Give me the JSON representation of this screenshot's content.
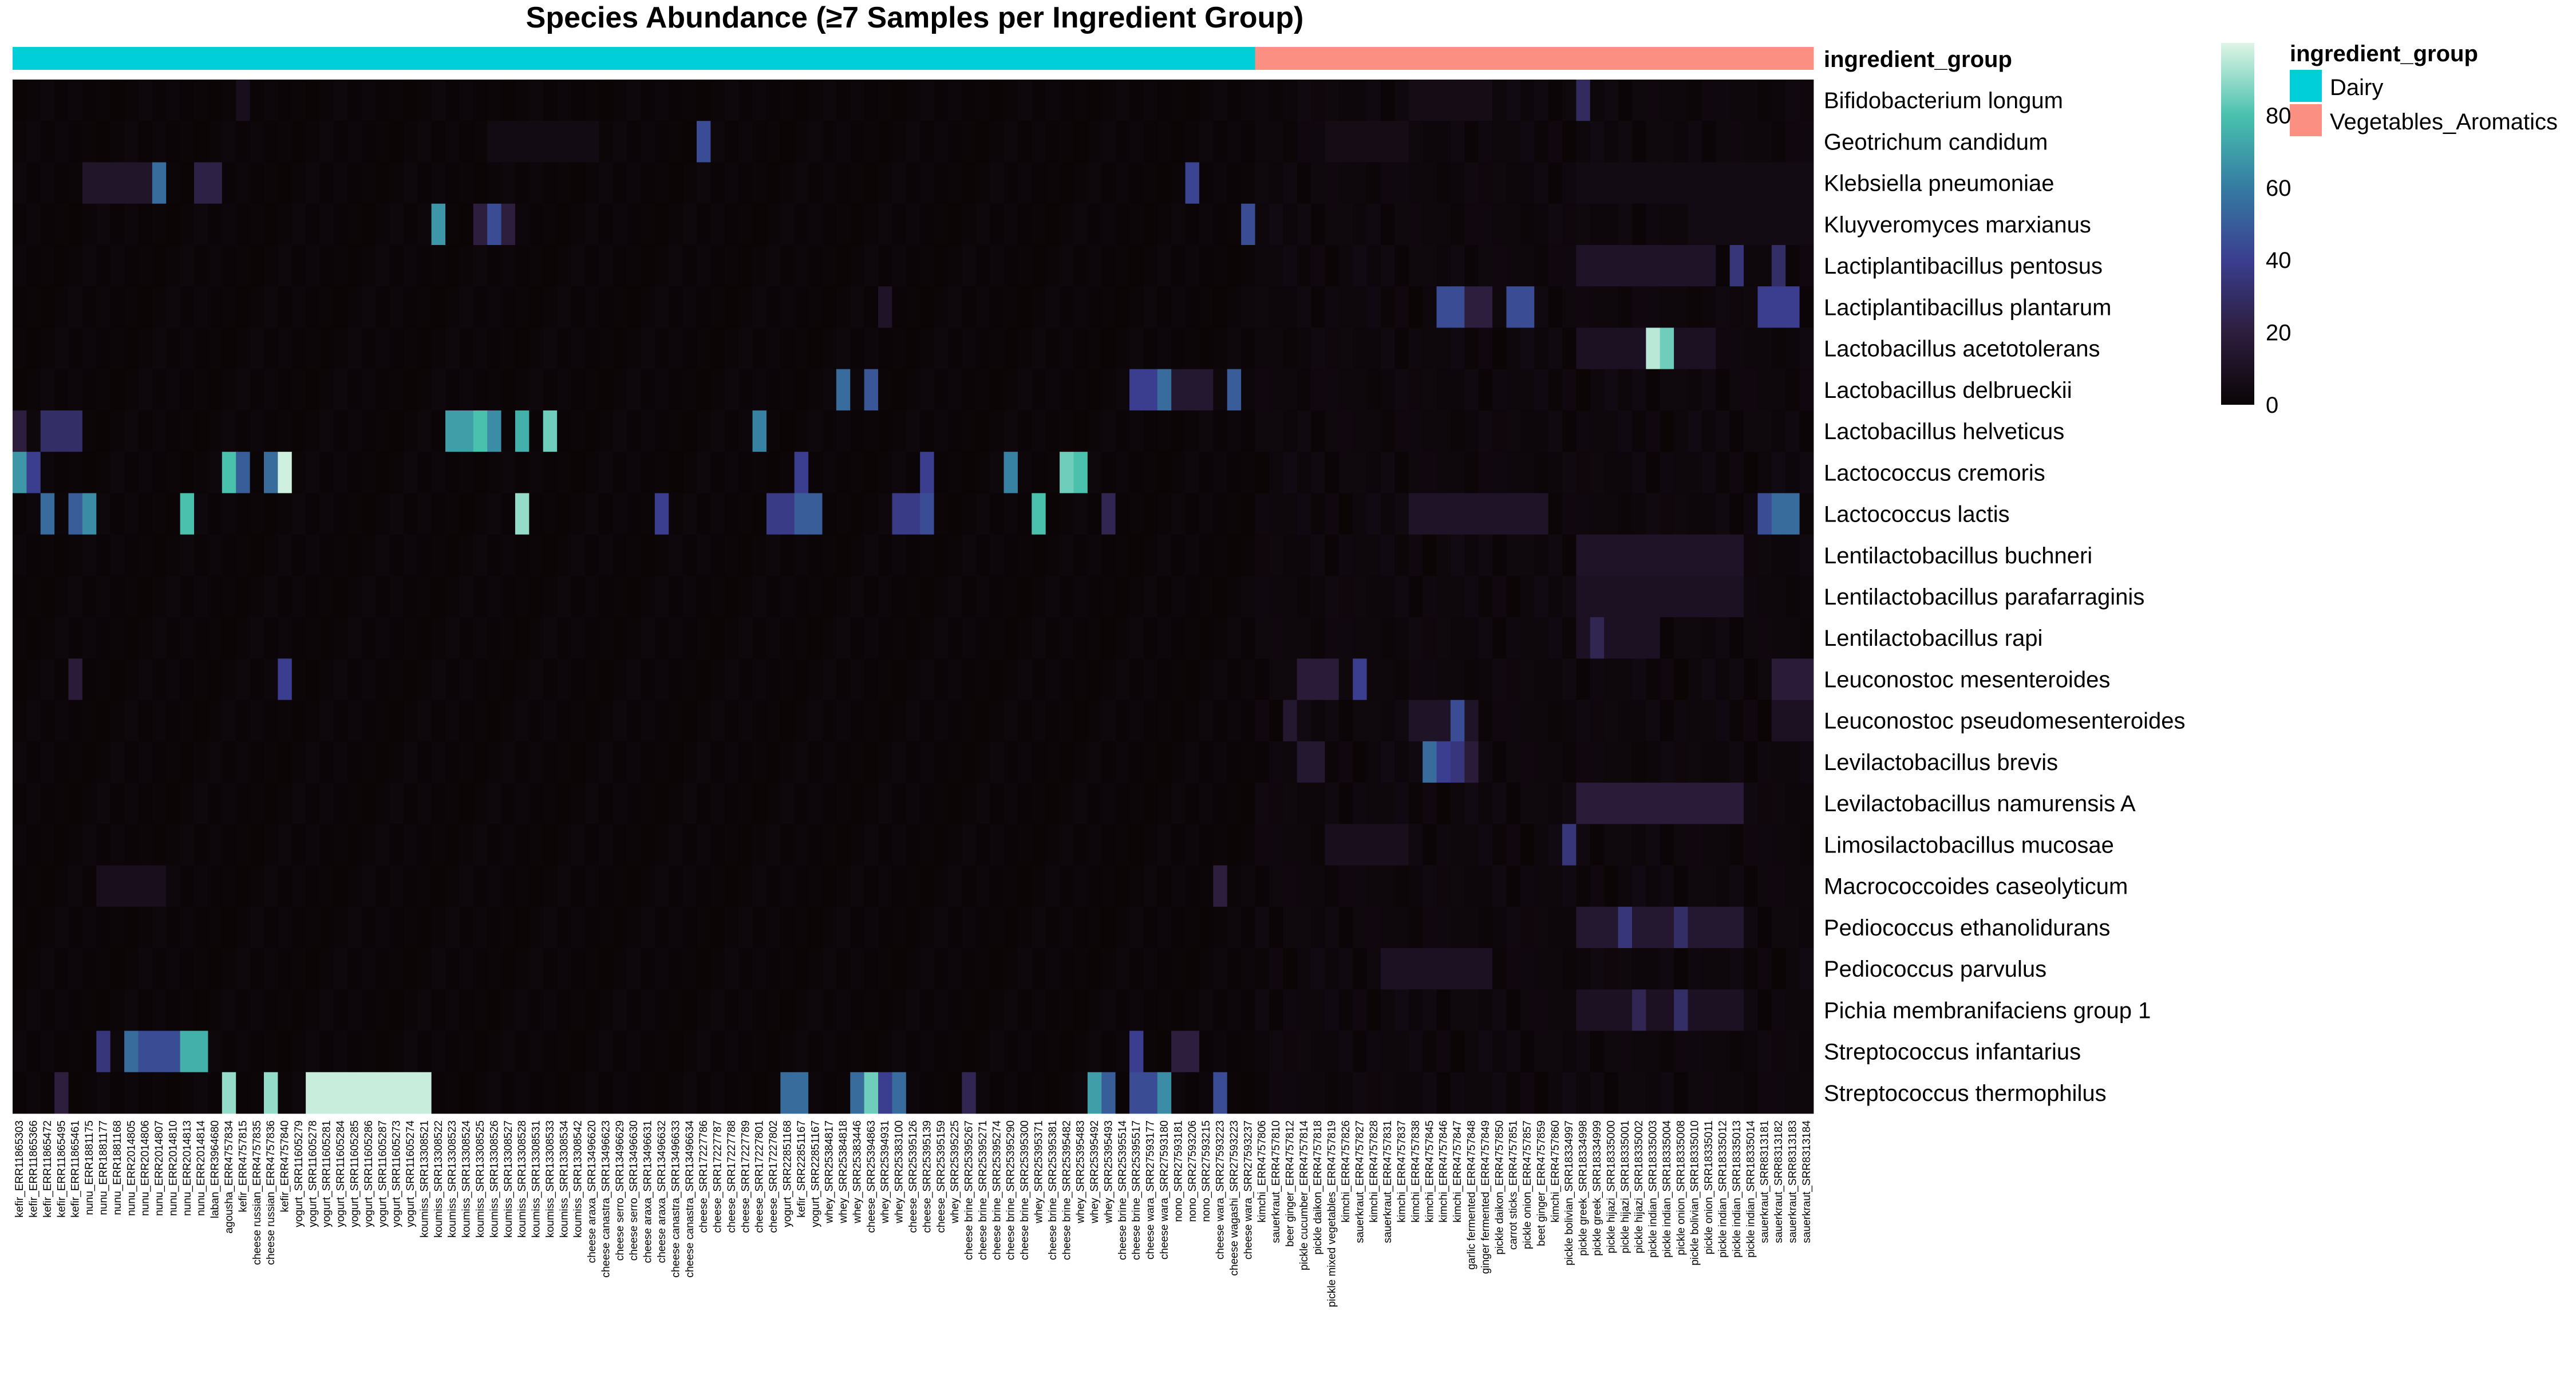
{
  "chart_data": {
    "type": "heatmap",
    "title": "Species Abundance (≥7 Samples per Ingredient Group)",
    "annotation_title": "ingredient_group",
    "color_scale": {
      "min": 0,
      "max": 100,
      "ticks": [
        0,
        20,
        40,
        60,
        80
      ],
      "stops": [
        "#0a0405",
        "#2d1e3e",
        "#3b3e8f",
        "#357ba2",
        "#49c1ad",
        "#def5e5"
      ]
    },
    "groups": [
      {
        "name": "Dairy",
        "color": "#00CED8"
      },
      {
        "name": "Vegetables_Aromatics",
        "color": "#FA8F82"
      }
    ],
    "rows": [
      "Bifidobacterium longum",
      "Geotrichum candidum",
      "Klebsiella pneumoniae",
      "Kluyveromyces marxianus",
      "Lactiplantibacillus pentosus",
      "Lactiplantibacillus plantarum",
      "Lactobacillus acetotolerans",
      "Lactobacillus delbrueckii",
      "Lactobacillus helveticus",
      "Lactococcus cremoris",
      "Lactococcus lactis",
      "Lentilactobacillus buchneri",
      "Lentilactobacillus parafarraginis",
      "Lentilactobacillus rapi",
      "Leuconostoc mesenteroides",
      "Leuconostoc pseudomesenteroides",
      "Levilactobacillus brevis",
      "Levilactobacillus namurensis A",
      "Limosilactobacillus mucosae",
      "Macrococcoides caseolyticum",
      "Pediococcus ethanolidurans",
      "Pediococcus parvulus",
      "Pichia membranifaciens group 1",
      "Streptococcus infantarius",
      "Streptococcus thermophilus"
    ],
    "columns": [
      {
        "label": "kefir_ERR11865303",
        "group": 0
      },
      {
        "label": "kefir_ERR11865366",
        "group": 0
      },
      {
        "label": "kefir_ERR11865472",
        "group": 0
      },
      {
        "label": "kefir_ERR11865495",
        "group": 0
      },
      {
        "label": "kefir_ERR11865461",
        "group": 0
      },
      {
        "label": "nunu_ERR1881175",
        "group": 0
      },
      {
        "label": "nunu_ERR1881177",
        "group": 0
      },
      {
        "label": "nunu_ERR1881168",
        "group": 0
      },
      {
        "label": "nunu_ERR2014805",
        "group": 0
      },
      {
        "label": "nunu_ERR2014806",
        "group": 0
      },
      {
        "label": "nunu_ERR2014807",
        "group": 0
      },
      {
        "label": "nunu_ERR2014810",
        "group": 0
      },
      {
        "label": "nunu_ERR2014813",
        "group": 0
      },
      {
        "label": "nunu_ERR2014814",
        "group": 0
      },
      {
        "label": "laban_ERR3964680",
        "group": 0
      },
      {
        "label": "agousha_ERR4757834",
        "group": 0
      },
      {
        "label": "kefir_ERR4757815",
        "group": 0
      },
      {
        "label": "cheese russian_ERR4757835",
        "group": 0
      },
      {
        "label": "cheese russian_ERR4757836",
        "group": 0
      },
      {
        "label": "kefir_ERR4757840",
        "group": 0
      },
      {
        "label": "yogurt_SRR11605279",
        "group": 0
      },
      {
        "label": "yogurt_SRR11605278",
        "group": 0
      },
      {
        "label": "yogurt_SRR11605281",
        "group": 0
      },
      {
        "label": "yogurt_SRR11605284",
        "group": 0
      },
      {
        "label": "yogurt_SRR11605285",
        "group": 0
      },
      {
        "label": "yogurt_SRR11605286",
        "group": 0
      },
      {
        "label": "yogurt_SRR11605287",
        "group": 0
      },
      {
        "label": "yogurt_SRR11605273",
        "group": 0
      },
      {
        "label": "yogurt_SRR11605274",
        "group": 0
      },
      {
        "label": "koumiss_SRR13308521",
        "group": 0
      },
      {
        "label": "koumiss_SRR13308522",
        "group": 0
      },
      {
        "label": "koumiss_SRR13308523",
        "group": 0
      },
      {
        "label": "koumiss_SRR13308524",
        "group": 0
      },
      {
        "label": "koumiss_SRR13308525",
        "group": 0
      },
      {
        "label": "koumiss_SRR13308526",
        "group": 0
      },
      {
        "label": "koumiss_SRR13308527",
        "group": 0
      },
      {
        "label": "koumiss_SRR13308528",
        "group": 0
      },
      {
        "label": "koumiss_SRR13308531",
        "group": 0
      },
      {
        "label": "koumiss_SRR13308533",
        "group": 0
      },
      {
        "label": "koumiss_SRR13308534",
        "group": 0
      },
      {
        "label": "koumiss_SRR13308542",
        "group": 0
      },
      {
        "label": "cheese araxa_SRR13496620",
        "group": 0
      },
      {
        "label": "cheese canastra_SRR13496623",
        "group": 0
      },
      {
        "label": "cheese serro_SRR13496629",
        "group": 0
      },
      {
        "label": "cheese serro_SRR13496630",
        "group": 0
      },
      {
        "label": "cheese araxa_SRR13496631",
        "group": 0
      },
      {
        "label": "cheese araxa_SRR13496632",
        "group": 0
      },
      {
        "label": "cheese canastra_SRR13496633",
        "group": 0
      },
      {
        "label": "cheese canastra_SRR13496634",
        "group": 0
      },
      {
        "label": "cheese_SRR17227786",
        "group": 0
      },
      {
        "label": "cheese_SRR17227787",
        "group": 0
      },
      {
        "label": "cheese_SRR17227788",
        "group": 0
      },
      {
        "label": "cheese_SRR17227789",
        "group": 0
      },
      {
        "label": "cheese_SRR17227801",
        "group": 0
      },
      {
        "label": "cheese_SRR17227802",
        "group": 0
      },
      {
        "label": "yogurt_SRR22851168",
        "group": 0
      },
      {
        "label": "kefir_SRR22851167",
        "group": 0
      },
      {
        "label": "yogurt_SRR22851167",
        "group": 0
      },
      {
        "label": "whey_SRR25384817",
        "group": 0
      },
      {
        "label": "whey_SRR25384818",
        "group": 0
      },
      {
        "label": "whey_SRR25383446",
        "group": 0
      },
      {
        "label": "cheese_SRR25394863",
        "group": 0
      },
      {
        "label": "whey_SRR25394931",
        "group": 0
      },
      {
        "label": "whey_SRR25383100",
        "group": 0
      },
      {
        "label": "cheese_SRR25395126",
        "group": 0
      },
      {
        "label": "cheese_SRR25395139",
        "group": 0
      },
      {
        "label": "cheese_SRR25395159",
        "group": 0
      },
      {
        "label": "whey_SRR25395225",
        "group": 0
      },
      {
        "label": "cheese brine_SRR25395267",
        "group": 0
      },
      {
        "label": "cheese brine_SRR25395271",
        "group": 0
      },
      {
        "label": "cheese brine_SRR25395274",
        "group": 0
      },
      {
        "label": "cheese brine_SRR25395290",
        "group": 0
      },
      {
        "label": "cheese brine_SRR25395300",
        "group": 0
      },
      {
        "label": "whey_SRR25395371",
        "group": 0
      },
      {
        "label": "cheese brine_SRR25395381",
        "group": 0
      },
      {
        "label": "cheese brine_SRR25395482",
        "group": 0
      },
      {
        "label": "whey_SRR25395483",
        "group": 0
      },
      {
        "label": "whey_SRR25395492",
        "group": 0
      },
      {
        "label": "whey_SRR25395493",
        "group": 0
      },
      {
        "label": "cheese brine_SRR25395514",
        "group": 0
      },
      {
        "label": "cheese brine_SRR25395517",
        "group": 0
      },
      {
        "label": "cheese wara_SRR27593177",
        "group": 0
      },
      {
        "label": "cheese wara_SRR27593180",
        "group": 0
      },
      {
        "label": "nono_SRR27593181",
        "group": 0
      },
      {
        "label": "nono_SRR27593206",
        "group": 0
      },
      {
        "label": "nono_SRR27593215",
        "group": 0
      },
      {
        "label": "cheese wara_SRR27593223",
        "group": 0
      },
      {
        "label": "cheese wagashi_SRR27593223",
        "group": 0
      },
      {
        "label": "cheese wara_SRR27593237",
        "group": 0
      },
      {
        "label": "kimchi_ERR4757806",
        "group": 1
      },
      {
        "label": "sauerkraut_ERR4757810",
        "group": 1
      },
      {
        "label": "beer ginger_ERR4757812",
        "group": 1
      },
      {
        "label": "pickle cucumber_ERR4757814",
        "group": 1
      },
      {
        "label": "pickle daikon_ERR4757818",
        "group": 1
      },
      {
        "label": "pickle mixed vegetables_ERR4757819",
        "group": 1
      },
      {
        "label": "kimchi_ERR4757826",
        "group": 1
      },
      {
        "label": "sauerkraut_ERR4757827",
        "group": 1
      },
      {
        "label": "kimchi_ERR4757828",
        "group": 1
      },
      {
        "label": "sauerkraut_ERR4757831",
        "group": 1
      },
      {
        "label": "kimchi_ERR4757837",
        "group": 1
      },
      {
        "label": "kimchi_ERR4757838",
        "group": 1
      },
      {
        "label": "kimchi_ERR4757845",
        "group": 1
      },
      {
        "label": "kimchi_ERR4757846",
        "group": 1
      },
      {
        "label": "kimchi_ERR4757847",
        "group": 1
      },
      {
        "label": "garlic fermented_ERR4757848",
        "group": 1
      },
      {
        "label": "ginger fermented_ERR4757849",
        "group": 1
      },
      {
        "label": "pickle daikon_ERR4757850",
        "group": 1
      },
      {
        "label": "carrot sticks_ERR4757851",
        "group": 1
      },
      {
        "label": "pickle onion_ERR4757857",
        "group": 1
      },
      {
        "label": "beet ginger_ERR4757859",
        "group": 1
      },
      {
        "label": "kimchi_ERR4757860",
        "group": 1
      },
      {
        "label": "pickle bolivian_SRR18334997",
        "group": 1
      },
      {
        "label": "pickle greek_SRR18334998",
        "group": 1
      },
      {
        "label": "pickle greek_SRR18334999",
        "group": 1
      },
      {
        "label": "pickle hijazi_SRR18335000",
        "group": 1
      },
      {
        "label": "pickle hijazi_SRR18335001",
        "group": 1
      },
      {
        "label": "pickle hijazi_SRR18335002",
        "group": 1
      },
      {
        "label": "pickle indian_SRR18335003",
        "group": 1
      },
      {
        "label": "pickle indian_SRR18335004",
        "group": 1
      },
      {
        "label": "pickle onion_SRR18335008",
        "group": 1
      },
      {
        "label": "pickle bolivian_SRR18335010",
        "group": 1
      },
      {
        "label": "pickle onion_SRR18335011",
        "group": 1
      },
      {
        "label": "pickle indian_SRR18335012",
        "group": 1
      },
      {
        "label": "pickle indian_SRR18335013",
        "group": 1
      },
      {
        "label": "pickle indian_SRR18335014",
        "group": 1
      },
      {
        "label": "sauerkraut_SRR8313181",
        "group": 1
      },
      {
        "label": "sauerkraut_SRR8313182",
        "group": 1
      },
      {
        "label": "sauerkraut_SRR8313183",
        "group": 1
      },
      {
        "label": "sauerkraut_SRR8313184",
        "group": 1
      }
    ],
    "hotspots": [
      [
        0,
        16,
        1,
        8
      ],
      [
        0,
        112,
        1,
        28
      ],
      [
        0,
        100,
        6,
        6
      ],
      [
        1,
        49,
        1,
        45
      ],
      [
        1,
        34,
        8,
        5
      ],
      [
        1,
        94,
        6,
        6
      ],
      [
        2,
        10,
        1,
        55
      ],
      [
        2,
        5,
        5,
        13
      ],
      [
        2,
        13,
        2,
        22
      ],
      [
        2,
        84,
        1,
        42
      ],
      [
        2,
        112,
        30,
        5
      ],
      [
        3,
        30,
        1,
        68
      ],
      [
        3,
        34,
        1,
        45
      ],
      [
        3,
        33,
        3,
        20
      ],
      [
        3,
        88,
        1,
        45
      ],
      [
        3,
        120,
        25,
        5
      ],
      [
        4,
        112,
        10,
        12
      ],
      [
        4,
        123,
        1,
        35
      ],
      [
        4,
        126,
        1,
        30
      ],
      [
        5,
        102,
        2,
        45
      ],
      [
        5,
        107,
        2,
        45
      ],
      [
        5,
        104,
        2,
        20
      ],
      [
        5,
        125,
        3,
        40
      ],
      [
        5,
        62,
        1,
        12
      ],
      [
        6,
        117,
        1,
        95
      ],
      [
        6,
        118,
        1,
        85
      ],
      [
        6,
        112,
        10,
        10
      ],
      [
        7,
        59,
        1,
        55
      ],
      [
        7,
        61,
        1,
        48
      ],
      [
        7,
        80,
        2,
        40
      ],
      [
        7,
        82,
        1,
        55
      ],
      [
        7,
        87,
        1,
        50
      ],
      [
        7,
        80,
        6,
        15
      ],
      [
        8,
        0,
        1,
        20
      ],
      [
        8,
        2,
        3,
        30
      ],
      [
        8,
        31,
        2,
        70
      ],
      [
        8,
        33,
        1,
        80
      ],
      [
        8,
        34,
        1,
        65
      ],
      [
        8,
        36,
        1,
        75
      ],
      [
        8,
        38,
        1,
        85
      ],
      [
        8,
        53,
        1,
        62
      ],
      [
        9,
        0,
        1,
        68
      ],
      [
        9,
        1,
        1,
        40
      ],
      [
        9,
        15,
        1,
        80
      ],
      [
        9,
        16,
        1,
        50
      ],
      [
        9,
        18,
        1,
        55
      ],
      [
        9,
        19,
        1,
        98
      ],
      [
        9,
        56,
        1,
        40
      ],
      [
        9,
        65,
        1,
        40
      ],
      [
        9,
        71,
        1,
        62
      ],
      [
        9,
        75,
        1,
        85
      ],
      [
        9,
        76,
        1,
        80
      ],
      [
        10,
        2,
        1,
        55
      ],
      [
        10,
        4,
        1,
        50
      ],
      [
        10,
        5,
        1,
        65
      ],
      [
        10,
        12,
        1,
        80
      ],
      [
        10,
        36,
        1,
        90
      ],
      [
        10,
        46,
        1,
        40
      ],
      [
        10,
        54,
        2,
        38
      ],
      [
        10,
        56,
        2,
        50
      ],
      [
        10,
        63,
        2,
        38
      ],
      [
        10,
        65,
        1,
        45
      ],
      [
        10,
        73,
        1,
        80
      ],
      [
        10,
        78,
        1,
        25
      ],
      [
        10,
        125,
        1,
        45
      ],
      [
        10,
        126,
        2,
        55
      ],
      [
        10,
        100,
        10,
        12
      ],
      [
        11,
        112,
        12,
        12
      ],
      [
        12,
        112,
        12,
        10
      ],
      [
        13,
        113,
        1,
        25
      ],
      [
        13,
        112,
        6,
        10
      ],
      [
        14,
        4,
        1,
        18
      ],
      [
        14,
        19,
        1,
        40
      ],
      [
        14,
        92,
        3,
        18
      ],
      [
        14,
        96,
        1,
        40
      ],
      [
        14,
        126,
        3,
        18
      ],
      [
        15,
        91,
        1,
        15
      ],
      [
        15,
        103,
        1,
        45
      ],
      [
        15,
        100,
        5,
        12
      ],
      [
        15,
        126,
        3,
        10
      ],
      [
        16,
        101,
        1,
        55
      ],
      [
        16,
        102,
        1,
        40
      ],
      [
        16,
        103,
        1,
        35
      ],
      [
        16,
        104,
        1,
        18
      ],
      [
        16,
        92,
        2,
        15
      ],
      [
        17,
        112,
        12,
        18
      ],
      [
        18,
        111,
        1,
        35
      ],
      [
        18,
        94,
        6,
        8
      ],
      [
        19,
        6,
        5,
        8
      ],
      [
        19,
        86,
        1,
        20
      ],
      [
        20,
        112,
        12,
        15
      ],
      [
        20,
        115,
        1,
        35
      ],
      [
        20,
        119,
        1,
        30
      ],
      [
        21,
        98,
        8,
        10
      ],
      [
        22,
        112,
        12,
        10
      ],
      [
        22,
        119,
        1,
        30
      ],
      [
        22,
        116,
        1,
        25
      ],
      [
        23,
        6,
        1,
        35
      ],
      [
        23,
        8,
        1,
        55
      ],
      [
        23,
        9,
        3,
        45
      ],
      [
        23,
        12,
        2,
        75
      ],
      [
        23,
        80,
        1,
        40
      ],
      [
        23,
        83,
        2,
        20
      ],
      [
        24,
        15,
        1,
        90
      ],
      [
        24,
        18,
        1,
        90
      ],
      [
        24,
        21,
        9,
        97
      ],
      [
        24,
        55,
        2,
        55
      ],
      [
        24,
        60,
        1,
        55
      ],
      [
        24,
        61,
        1,
        85
      ],
      [
        24,
        62,
        1,
        40
      ],
      [
        24,
        63,
        1,
        55
      ],
      [
        24,
        68,
        1,
        25
      ],
      [
        24,
        77,
        1,
        70
      ],
      [
        24,
        78,
        1,
        50
      ],
      [
        24,
        80,
        2,
        45
      ],
      [
        24,
        82,
        1,
        65
      ],
      [
        24,
        86,
        1,
        45
      ],
      [
        24,
        3,
        1,
        20
      ]
    ]
  }
}
